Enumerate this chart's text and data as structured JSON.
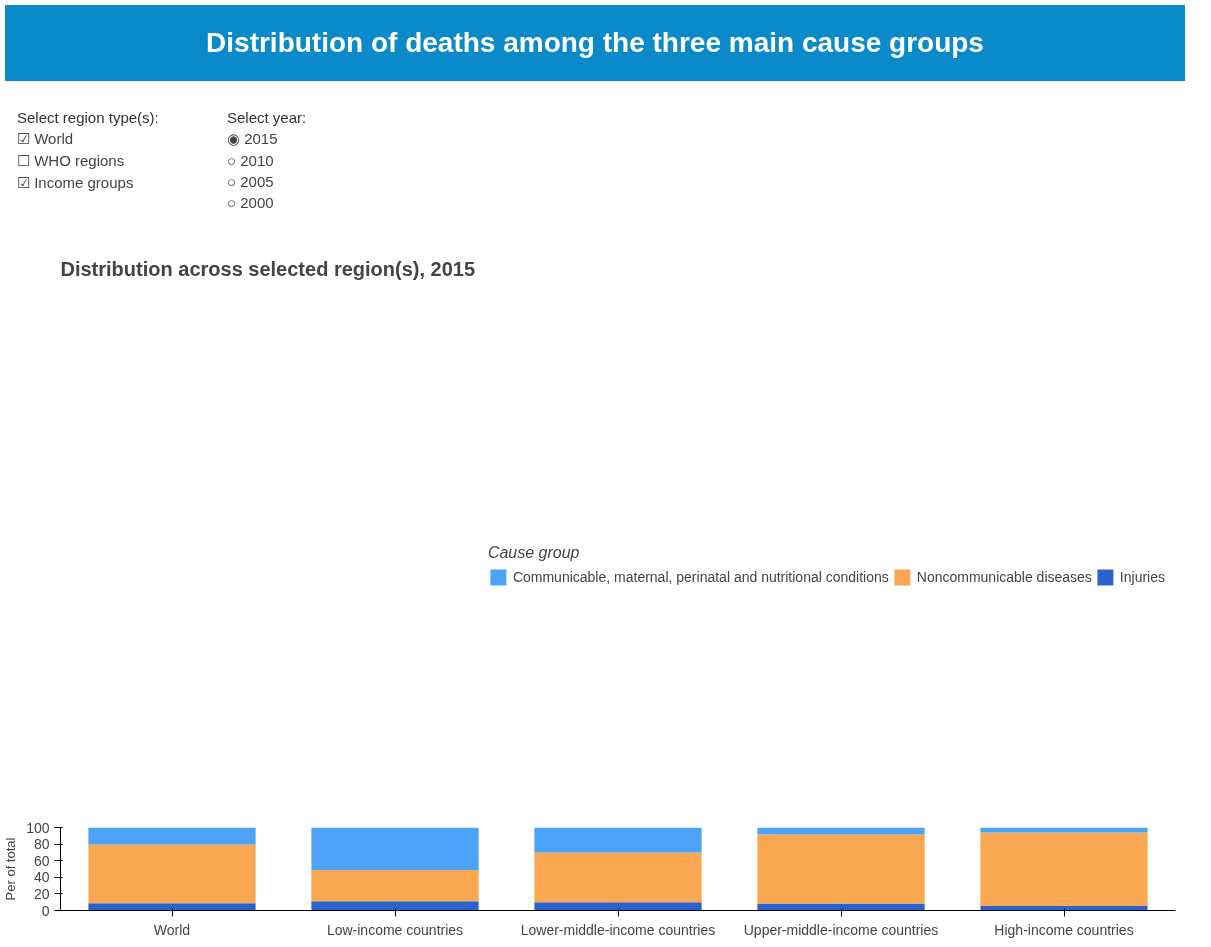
{
  "chart_data": {
    "type": "bar",
    "title": "Distribution of deaths among the three main cause groups",
    "subtitle": "Distribution across selected region(s), 2015",
    "ylabel": "Per of total",
    "legend_title": "Cause group",
    "annotations": [
      "Select region type(s):",
      "☑ World",
      "☐ WHO regions",
      "☑ Income groups",
      "Select year:",
      "◉ 2015",
      "○ 2010",
      "○ 2005",
      "○ 2000"
    ],
    "categories": [
      "World",
      "Low-income countries",
      "Lower-middle-income countries",
      "Upper-middle-income countries",
      "High-income countries"
    ],
    "stacked": true,
    "series": [
      {
        "name": "Injuries",
        "color": "#2b63cc",
        "values": [
          8.6,
          11.2,
          9.8,
          8.3,
          5.5
        ]
      },
      {
        "name": "Noncommunicable diseases",
        "color": "#f9a750",
        "values": [
          70.8,
          37.5,
          60.1,
          83.4,
          88.4
        ]
      },
      {
        "name": "Communicable, maternal, perinatal and nutritional conditions",
        "color": "#4da3f7",
        "values": [
          20.6,
          51.3,
          30.1,
          8.3,
          6.1
        ]
      }
    ],
    "ylim": [
      0,
      100
    ],
    "yticks": [
      0,
      20,
      40,
      60,
      80,
      100
    ],
    "grid": false,
    "legend": "top"
  }
}
